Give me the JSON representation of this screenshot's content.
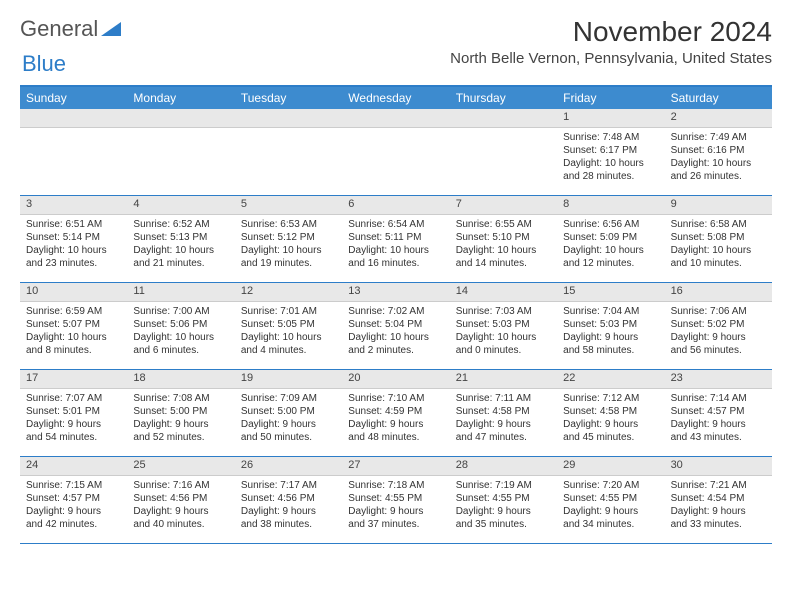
{
  "logo": {
    "text1": "General",
    "text2": "Blue"
  },
  "title": "November 2024",
  "location": "North Belle Vernon, Pennsylvania, United States",
  "colors": {
    "accent": "#3d8bcf",
    "border": "#2d7dc8",
    "daynum_bg": "#e8e8e8",
    "text": "#333333"
  },
  "dow": [
    "Sunday",
    "Monday",
    "Tuesday",
    "Wednesday",
    "Thursday",
    "Friday",
    "Saturday"
  ],
  "weeks": [
    [
      {
        "n": "",
        "l1": "",
        "l2": "",
        "l3": "",
        "l4": ""
      },
      {
        "n": "",
        "l1": "",
        "l2": "",
        "l3": "",
        "l4": ""
      },
      {
        "n": "",
        "l1": "",
        "l2": "",
        "l3": "",
        "l4": ""
      },
      {
        "n": "",
        "l1": "",
        "l2": "",
        "l3": "",
        "l4": ""
      },
      {
        "n": "",
        "l1": "",
        "l2": "",
        "l3": "",
        "l4": ""
      },
      {
        "n": "1",
        "l1": "Sunrise: 7:48 AM",
        "l2": "Sunset: 6:17 PM",
        "l3": "Daylight: 10 hours",
        "l4": "and 28 minutes."
      },
      {
        "n": "2",
        "l1": "Sunrise: 7:49 AM",
        "l2": "Sunset: 6:16 PM",
        "l3": "Daylight: 10 hours",
        "l4": "and 26 minutes."
      }
    ],
    [
      {
        "n": "3",
        "l1": "Sunrise: 6:51 AM",
        "l2": "Sunset: 5:14 PM",
        "l3": "Daylight: 10 hours",
        "l4": "and 23 minutes."
      },
      {
        "n": "4",
        "l1": "Sunrise: 6:52 AM",
        "l2": "Sunset: 5:13 PM",
        "l3": "Daylight: 10 hours",
        "l4": "and 21 minutes."
      },
      {
        "n": "5",
        "l1": "Sunrise: 6:53 AM",
        "l2": "Sunset: 5:12 PM",
        "l3": "Daylight: 10 hours",
        "l4": "and 19 minutes."
      },
      {
        "n": "6",
        "l1": "Sunrise: 6:54 AM",
        "l2": "Sunset: 5:11 PM",
        "l3": "Daylight: 10 hours",
        "l4": "and 16 minutes."
      },
      {
        "n": "7",
        "l1": "Sunrise: 6:55 AM",
        "l2": "Sunset: 5:10 PM",
        "l3": "Daylight: 10 hours",
        "l4": "and 14 minutes."
      },
      {
        "n": "8",
        "l1": "Sunrise: 6:56 AM",
        "l2": "Sunset: 5:09 PM",
        "l3": "Daylight: 10 hours",
        "l4": "and 12 minutes."
      },
      {
        "n": "9",
        "l1": "Sunrise: 6:58 AM",
        "l2": "Sunset: 5:08 PM",
        "l3": "Daylight: 10 hours",
        "l4": "and 10 minutes."
      }
    ],
    [
      {
        "n": "10",
        "l1": "Sunrise: 6:59 AM",
        "l2": "Sunset: 5:07 PM",
        "l3": "Daylight: 10 hours",
        "l4": "and 8 minutes."
      },
      {
        "n": "11",
        "l1": "Sunrise: 7:00 AM",
        "l2": "Sunset: 5:06 PM",
        "l3": "Daylight: 10 hours",
        "l4": "and 6 minutes."
      },
      {
        "n": "12",
        "l1": "Sunrise: 7:01 AM",
        "l2": "Sunset: 5:05 PM",
        "l3": "Daylight: 10 hours",
        "l4": "and 4 minutes."
      },
      {
        "n": "13",
        "l1": "Sunrise: 7:02 AM",
        "l2": "Sunset: 5:04 PM",
        "l3": "Daylight: 10 hours",
        "l4": "and 2 minutes."
      },
      {
        "n": "14",
        "l1": "Sunrise: 7:03 AM",
        "l2": "Sunset: 5:03 PM",
        "l3": "Daylight: 10 hours",
        "l4": "and 0 minutes."
      },
      {
        "n": "15",
        "l1": "Sunrise: 7:04 AM",
        "l2": "Sunset: 5:03 PM",
        "l3": "Daylight: 9 hours",
        "l4": "and 58 minutes."
      },
      {
        "n": "16",
        "l1": "Sunrise: 7:06 AM",
        "l2": "Sunset: 5:02 PM",
        "l3": "Daylight: 9 hours",
        "l4": "and 56 minutes."
      }
    ],
    [
      {
        "n": "17",
        "l1": "Sunrise: 7:07 AM",
        "l2": "Sunset: 5:01 PM",
        "l3": "Daylight: 9 hours",
        "l4": "and 54 minutes."
      },
      {
        "n": "18",
        "l1": "Sunrise: 7:08 AM",
        "l2": "Sunset: 5:00 PM",
        "l3": "Daylight: 9 hours",
        "l4": "and 52 minutes."
      },
      {
        "n": "19",
        "l1": "Sunrise: 7:09 AM",
        "l2": "Sunset: 5:00 PM",
        "l3": "Daylight: 9 hours",
        "l4": "and 50 minutes."
      },
      {
        "n": "20",
        "l1": "Sunrise: 7:10 AM",
        "l2": "Sunset: 4:59 PM",
        "l3": "Daylight: 9 hours",
        "l4": "and 48 minutes."
      },
      {
        "n": "21",
        "l1": "Sunrise: 7:11 AM",
        "l2": "Sunset: 4:58 PM",
        "l3": "Daylight: 9 hours",
        "l4": "and 47 minutes."
      },
      {
        "n": "22",
        "l1": "Sunrise: 7:12 AM",
        "l2": "Sunset: 4:58 PM",
        "l3": "Daylight: 9 hours",
        "l4": "and 45 minutes."
      },
      {
        "n": "23",
        "l1": "Sunrise: 7:14 AM",
        "l2": "Sunset: 4:57 PM",
        "l3": "Daylight: 9 hours",
        "l4": "and 43 minutes."
      }
    ],
    [
      {
        "n": "24",
        "l1": "Sunrise: 7:15 AM",
        "l2": "Sunset: 4:57 PM",
        "l3": "Daylight: 9 hours",
        "l4": "and 42 minutes."
      },
      {
        "n": "25",
        "l1": "Sunrise: 7:16 AM",
        "l2": "Sunset: 4:56 PM",
        "l3": "Daylight: 9 hours",
        "l4": "and 40 minutes."
      },
      {
        "n": "26",
        "l1": "Sunrise: 7:17 AM",
        "l2": "Sunset: 4:56 PM",
        "l3": "Daylight: 9 hours",
        "l4": "and 38 minutes."
      },
      {
        "n": "27",
        "l1": "Sunrise: 7:18 AM",
        "l2": "Sunset: 4:55 PM",
        "l3": "Daylight: 9 hours",
        "l4": "and 37 minutes."
      },
      {
        "n": "28",
        "l1": "Sunrise: 7:19 AM",
        "l2": "Sunset: 4:55 PM",
        "l3": "Daylight: 9 hours",
        "l4": "and 35 minutes."
      },
      {
        "n": "29",
        "l1": "Sunrise: 7:20 AM",
        "l2": "Sunset: 4:55 PM",
        "l3": "Daylight: 9 hours",
        "l4": "and 34 minutes."
      },
      {
        "n": "30",
        "l1": "Sunrise: 7:21 AM",
        "l2": "Sunset: 4:54 PM",
        "l3": "Daylight: 9 hours",
        "l4": "and 33 minutes."
      }
    ]
  ]
}
